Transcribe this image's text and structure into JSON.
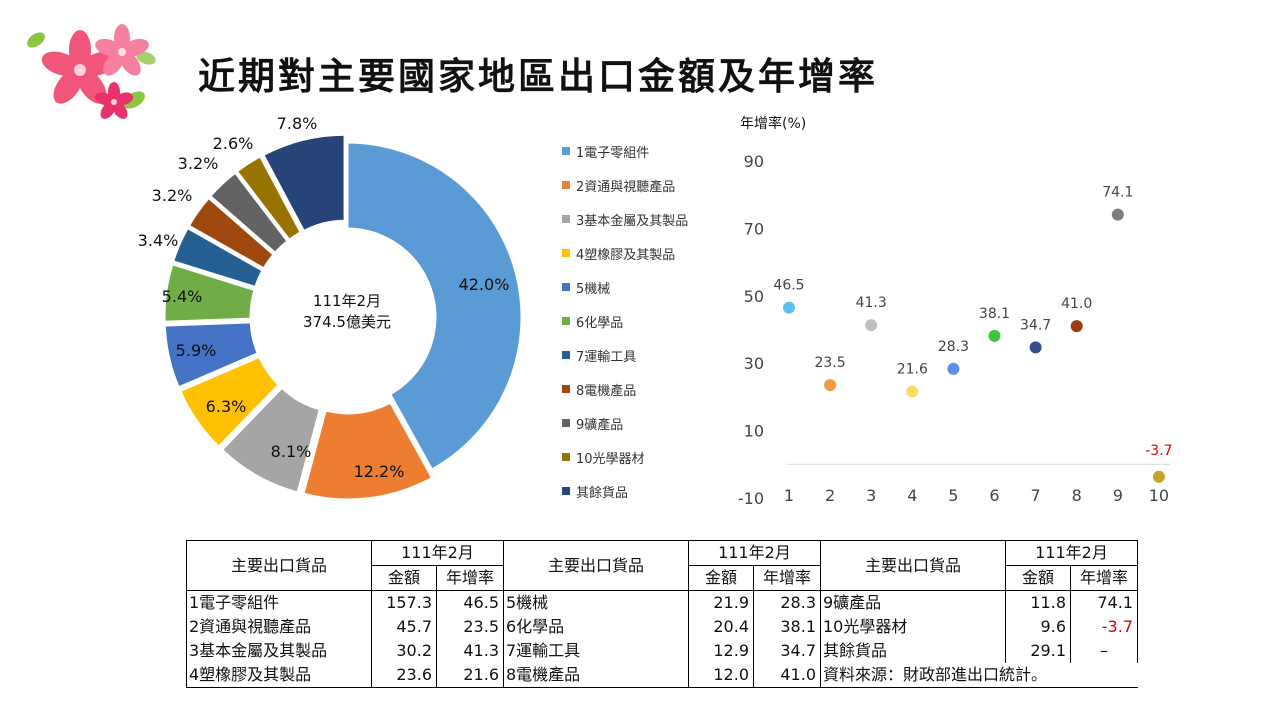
{
  "title": "近期對主要國家地區出口金額及年增率",
  "colors": {
    "1電子零組件": "#5b9bd5",
    "2資通與視聽產品": "#ed7d31",
    "3基本金屬及其製品": "#a5a5a5",
    "4塑橡膠及其製品": "#ffc000",
    "5機械": "#4472c4",
    "6化學品": "#70ad47",
    "7運輸工具": "#255e91",
    "8電機產品": "#9e480e",
    "9礦產品": "#636363",
    "10光學器材": "#997300",
    "其餘貨品": "#264478",
    "negative": "#e00000"
  },
  "chart_data": [
    {
      "type": "pie",
      "center_label": [
        "111年2月",
        "374.5億美元"
      ],
      "legend_position": "right",
      "slices": [
        {
          "name": "1電子零組件",
          "value": 42.0,
          "label": "42.0%"
        },
        {
          "name": "2資通與視聽產品",
          "value": 12.2,
          "label": "12.2%"
        },
        {
          "name": "3基本金屬及其製品",
          "value": 8.1,
          "label": "8.1%"
        },
        {
          "name": "4塑橡膠及其製品",
          "value": 6.3,
          "label": "6.3%"
        },
        {
          "name": "5機械",
          "value": 5.9,
          "label": "5.9%"
        },
        {
          "name": "6化學品",
          "value": 5.4,
          "label": "5.4%"
        },
        {
          "name": "7運輸工具",
          "value": 3.4,
          "label": "3.4%"
        },
        {
          "name": "8電機產品",
          "value": 3.2,
          "label": "3.2%"
        },
        {
          "name": "9礦產品",
          "value": 3.2,
          "label": "3.2%"
        },
        {
          "name": "10光學器材",
          "value": 2.6,
          "label": "2.6%"
        },
        {
          "name": "其餘貨品",
          "value": 7.8,
          "label": "7.8%"
        }
      ]
    },
    {
      "type": "scatter",
      "ylabel": "年增率(%)",
      "ylim": [
        -10,
        90
      ],
      "yticks": [
        -10,
        10,
        30,
        50,
        70,
        90
      ],
      "xticks": [
        1,
        2,
        3,
        4,
        5,
        6,
        7,
        8,
        9,
        10
      ],
      "grid": false,
      "points": [
        {
          "x": 1,
          "y": 46.5,
          "label": "46.5",
          "color": "#5ec0ee"
        },
        {
          "x": 2,
          "y": 23.5,
          "label": "23.5",
          "color": "#f39a45"
        },
        {
          "x": 3,
          "y": 41.3,
          "label": "41.3",
          "color": "#bfbfbf"
        },
        {
          "x": 4,
          "y": 21.6,
          "label": "21.6",
          "color": "#ffd966"
        },
        {
          "x": 5,
          "y": 28.3,
          "label": "28.3",
          "color": "#5b8def"
        },
        {
          "x": 6,
          "y": 38.1,
          "label": "38.1",
          "color": "#3cc43c"
        },
        {
          "x": 7,
          "y": 34.7,
          "label": "34.7",
          "color": "#2f4d8f"
        },
        {
          "x": 8,
          "y": 41.0,
          "label": "41.0",
          "color": "#9e3a0e"
        },
        {
          "x": 9,
          "y": 74.1,
          "label": "74.1",
          "color": "#7f7f7f"
        },
        {
          "x": 10,
          "y": -3.7,
          "label": "-3.7",
          "color": "#c9a227"
        }
      ]
    }
  ],
  "table": {
    "header_group": "主要出口貨品",
    "period": "111年2月",
    "col_amount": "金額",
    "col_growth": "年增率",
    "groups": [
      [
        {
          "name": "1電子零組件",
          "amount": "157.3",
          "growth": "46.5"
        },
        {
          "name": "2資通與視聽產品",
          "amount": "45.7",
          "growth": "23.5"
        },
        {
          "name": "3基本金屬及其製品",
          "amount": "30.2",
          "growth": "41.3"
        },
        {
          "name": "4塑橡膠及其製品",
          "amount": "23.6",
          "growth": "21.6"
        }
      ],
      [
        {
          "name": "5機械",
          "amount": "21.9",
          "growth": "28.3"
        },
        {
          "name": "6化學品",
          "amount": "20.4",
          "growth": "38.1"
        },
        {
          "name": "7運輸工具",
          "amount": "12.9",
          "growth": "34.7"
        },
        {
          "name": "8電機產品",
          "amount": "12.0",
          "growth": "41.0"
        }
      ],
      [
        {
          "name": "9礦產品",
          "amount": "11.8",
          "growth": "74.1"
        },
        {
          "name": "10光學器材",
          "amount": "9.6",
          "growth": "-3.7"
        },
        {
          "name": "其餘貨品",
          "amount": "29.1",
          "growth": "–"
        }
      ]
    ],
    "source": "資料來源：財政部進出口統計。"
  }
}
